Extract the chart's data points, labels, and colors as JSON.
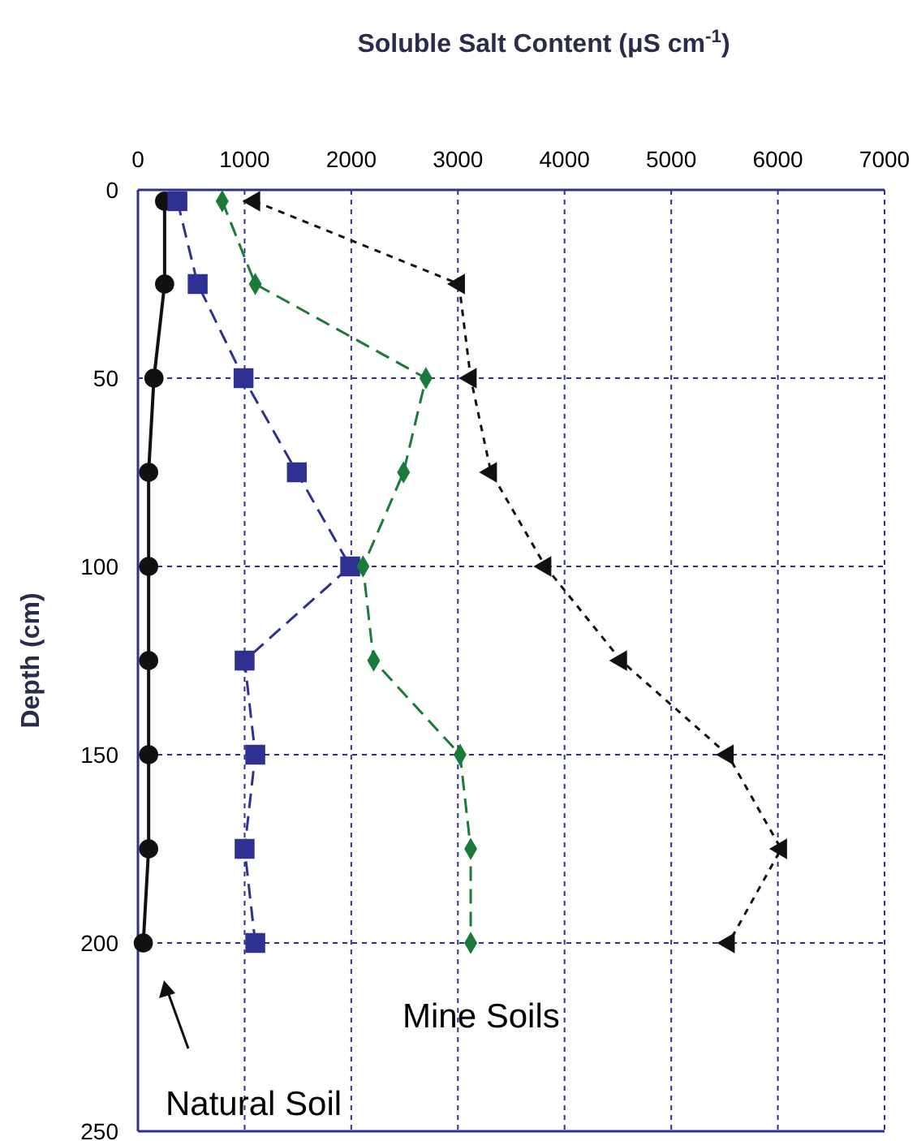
{
  "chart_data": {
    "type": "line",
    "xlabel": "Soluble Salt Content (μS cm$^{-1}$)",
    "ylabel": "Depth (cm)",
    "orientation": "horizontal",
    "x": [
      3,
      25,
      50,
      75,
      100,
      125,
      150,
      175,
      200
    ],
    "series": [
      {
        "color": "#111111",
        "marker": "circle",
        "line_style": "solid",
        "values": [
          250,
          250,
          150,
          100,
          100,
          100,
          100,
          100,
          50
        ]
      },
      {
        "color": "#2e3192",
        "marker": "square",
        "line_style": "dashed",
        "values": [
          370,
          560,
          990,
          1490,
          1990,
          1000,
          1100,
          1000,
          1100
        ]
      },
      {
        "color": "#1a7a3a",
        "marker": "diamond",
        "line_style": "dashed",
        "values": [
          790,
          1100,
          2700,
          2490,
          2110,
          2210,
          3020,
          3120,
          3120
        ]
      },
      {
        "color": "#111111",
        "marker": "triangle",
        "line_style": "dotted",
        "values": [
          1090,
          3010,
          3120,
          3310,
          3820,
          4530,
          5530,
          6030,
          5540
        ]
      }
    ],
    "xlim": [
      0,
      7000
    ],
    "xticks": [
      0,
      1000,
      2000,
      3000,
      4000,
      5000,
      6000,
      7000
    ],
    "ylim": [
      250,
      0
    ],
    "yticks": [
      0,
      50,
      100,
      150,
      200,
      250
    ],
    "grid": true,
    "annotations": [
      "Natural Soil",
      "Mine Soils"
    ]
  }
}
